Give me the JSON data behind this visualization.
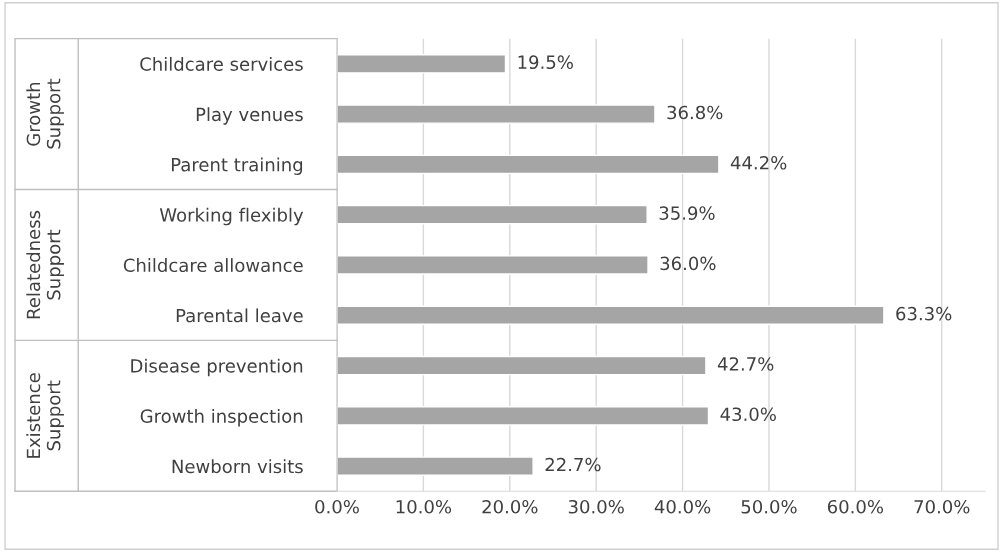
{
  "chart_data": {
    "type": "bar",
    "orientation": "horizontal",
    "categories": [
      "Childcare services",
      "Play venues",
      "Parent training",
      "Working flexibly",
      "Childcare allowance",
      "Parental leave",
      "Disease prevention",
      "Growth inspection",
      "Newborn visits"
    ],
    "values": [
      19.5,
      36.8,
      44.2,
      35.9,
      36.0,
      63.3,
      42.7,
      43.0,
      22.7
    ],
    "value_labels": [
      "19.5%",
      "36.8%",
      "44.2%",
      "35.9%",
      "36.0%",
      "63.3%",
      "42.7%",
      "43.0%",
      "22.7%"
    ],
    "color": "#a5a5a5",
    "xlim": [
      0,
      75
    ],
    "xticks": [
      {
        "value": 0,
        "label": "0.0%"
      },
      {
        "value": 10,
        "label": "10.0%"
      },
      {
        "value": 20,
        "label": "20.0%"
      },
      {
        "value": 30,
        "label": "30.0%"
      },
      {
        "value": 40,
        "label": "40.0%"
      },
      {
        "value": 50,
        "label": "50.0%"
      },
      {
        "value": 60,
        "label": "60.0%"
      },
      {
        "value": 70,
        "label": "70.0%"
      }
    ],
    "annotations": [
      "Growth\nSupport",
      "Relatedness\nSupport",
      "Existence\nSupport"
    ],
    "grid": "x",
    "legend": false
  }
}
